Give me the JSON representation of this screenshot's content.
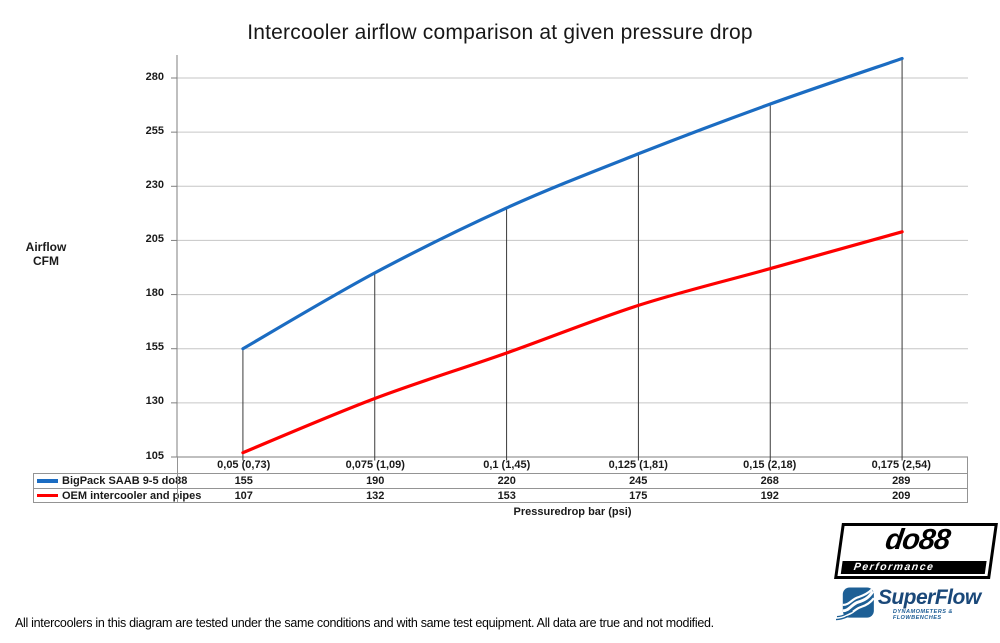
{
  "title": "Intercooler airflow comparison at given pressure drop",
  "y_axis": {
    "label_line1": "Airflow",
    "label_line2": "CFM",
    "ticks": [
      105,
      130,
      155,
      180,
      205,
      230,
      255,
      280
    ]
  },
  "x_axis": {
    "label": "Pressuredrop bar (psi)"
  },
  "chart_data": {
    "type": "line",
    "title": "Intercooler airflow comparison at given pressure drop",
    "xlabel": "Pressuredrop bar (psi)",
    "ylabel": "Airflow CFM",
    "categories": [
      "0,05 (0,73)",
      "0,075 (1,09)",
      "0,1 (1,45)",
      "0,125 (1,81)",
      "0,15 (2,18)",
      "0,175 (2,54)"
    ],
    "series": [
      {
        "name": "BigPack SAAB 9-5 do88",
        "color": "#1B6CC2",
        "values": [
          155,
          190,
          220,
          245,
          268,
          289
        ]
      },
      {
        "name": "OEM intercooler and pipes",
        "color": "#FE0000",
        "values": [
          107,
          132,
          153,
          175,
          192,
          209
        ]
      }
    ],
    "ylim": [
      105,
      290
    ],
    "ytick_step": 25,
    "grid": "horizontal-only",
    "smooth": true,
    "drop_lines": true,
    "legend_position": "data-table-left"
  },
  "footer": "All intercoolers in this diagram are tested under the same conditions and with same test equipment. All data are true and not modified.",
  "logos": {
    "do88": {
      "name": "do88",
      "subtitle": "Performance"
    },
    "superflow": {
      "name": "SuperFlow",
      "subtitle": "DYNAMOMETERS & FLOWBENCHES"
    }
  },
  "colors": {
    "blue_series": "#1B6CC2",
    "red_series": "#FE0000",
    "gridline": "#C6C6C6",
    "axis": "#7F7F7F",
    "drop_line": "#3A3A3A",
    "table_border": "#949494"
  }
}
